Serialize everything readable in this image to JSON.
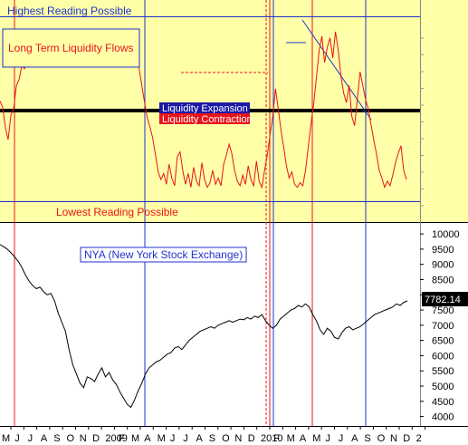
{
  "chart_data": [
    {
      "panel": "top",
      "type": "line",
      "annotations": {
        "highest": "Highest Reading Possible",
        "lowest": "Lowest Reading Possible",
        "title_box": "Long Term Liquidity Flows",
        "expansion": "Liquidity Expansion",
        "contraction": "Liquidity Contraction"
      },
      "y_ticks": [
        "",
        "",
        "",
        "",
        "",
        "",
        "",
        "",
        "",
        "",
        ""
      ],
      "series": [
        {
          "color": "#e8141b",
          "points": [
            [
              0,
              130
            ],
            [
              3,
              122
            ],
            [
              6,
              95
            ],
            [
              9,
              80
            ],
            [
              12,
              112
            ],
            [
              15,
              120
            ],
            [
              18,
              150
            ],
            [
              21,
              158
            ],
            [
              24,
              176
            ],
            [
              27,
              172
            ],
            [
              30,
              188
            ],
            [
              33,
              183
            ],
            [
              36,
              200
            ],
            [
              39,
              195
            ],
            [
              42,
              206
            ],
            [
              45,
              198
            ],
            [
              48,
              190
            ],
            [
              51,
              208
            ],
            [
              54,
              196
            ],
            [
              57,
              214
            ],
            [
              60,
              200
            ],
            [
              63,
              218
            ],
            [
              66,
              204
            ],
            [
              69,
              198
            ],
            [
              72,
              215
            ],
            [
              75,
              206
            ],
            [
              78,
              195
            ],
            [
              81,
              212
            ],
            [
              84,
              200
            ],
            [
              87,
              220
            ],
            [
              90,
              205
            ],
            [
              93,
              214
            ],
            [
              96,
              196
            ],
            [
              99,
              188
            ],
            [
              102,
              200
            ],
            [
              105,
              186
            ],
            [
              108,
              198
            ],
            [
              111,
              180
            ],
            [
              114,
              192
            ],
            [
              117,
              178
            ],
            [
              120,
              190
            ],
            [
              123,
              182
            ],
            [
              126,
              196
            ],
            [
              129,
              184
            ],
            [
              132,
              200
            ],
            [
              135,
              205
            ],
            [
              138,
              214
            ],
            [
              141,
              222
            ],
            [
              144,
              218
            ],
            [
              147,
              205
            ],
            [
              150,
              190
            ],
            [
              153,
              172
            ],
            [
              156,
              150
            ],
            [
              159,
              128
            ],
            [
              162,
              108
            ],
            [
              165,
              96
            ],
            [
              168,
              82
            ],
            [
              171,
              60
            ],
            [
              174,
              38
            ],
            [
              177,
              28
            ],
            [
              180,
              36
            ],
            [
              183,
              22
            ],
            [
              186,
              48
            ],
            [
              189,
              30
            ],
            [
              192,
              20
            ],
            [
              195,
              58
            ],
            [
              198,
              64
            ],
            [
              201,
              40
            ],
            [
              204,
              22
            ],
            [
              207,
              36
            ],
            [
              210,
              18
            ],
            [
              213,
              44
            ],
            [
              216,
              26
            ],
            [
              219,
              20
            ],
            [
              222,
              50
            ],
            [
              225,
              28
            ],
            [
              228,
              18
            ],
            [
              231,
              24
            ],
            [
              234,
              40
            ],
            [
              237,
              22
            ],
            [
              240,
              30
            ],
            [
              243,
              20
            ],
            [
              246,
              48
            ],
            [
              249,
              60
            ],
            [
              252,
              74
            ],
            [
              255,
              62
            ],
            [
              258,
              40
            ],
            [
              261,
              26
            ],
            [
              264,
              20
            ],
            [
              267,
              34
            ],
            [
              270,
              22
            ],
            [
              273,
              46
            ],
            [
              276,
              28
            ],
            [
              279,
              20
            ],
            [
              282,
              52
            ],
            [
              285,
              26
            ],
            [
              288,
              18
            ],
            [
              291,
              40
            ],
            [
              294,
              60
            ],
            [
              297,
              86
            ],
            [
              300,
              110
            ],
            [
              303,
              146
            ],
            [
              306,
              120
            ],
            [
              309,
              92
            ],
            [
              312,
              70
            ],
            [
              315,
              46
            ],
            [
              318,
              30
            ],
            [
              321,
              38
            ],
            [
              324,
              22
            ],
            [
              327,
              18
            ],
            [
              330,
              24
            ],
            [
              333,
              20
            ],
            [
              336,
              40
            ],
            [
              339,
              70
            ],
            [
              342,
              100
            ],
            [
              345,
              126
            ],
            [
              348,
              160
            ],
            [
              351,
              196
            ],
            [
              354,
              214
            ],
            [
              357,
              180
            ],
            [
              360,
              200
            ],
            [
              363,
              212
            ],
            [
              366,
              186
            ],
            [
              369,
              220
            ],
            [
              372,
              196
            ],
            [
              375,
              162
            ],
            [
              378,
              140
            ],
            [
              381,
              128
            ],
            [
              384,
              150
            ],
            [
              387,
              110
            ],
            [
              390,
              98
            ],
            [
              393,
              132
            ],
            [
              396,
              168
            ],
            [
              399,
              150
            ],
            [
              402,
              132
            ],
            [
              405,
              120
            ],
            [
              408,
              100
            ],
            [
              411,
              80
            ],
            [
              414,
              62
            ],
            [
              417,
              40
            ],
            [
              420,
              30
            ],
            [
              423,
              18
            ],
            [
              426,
              26
            ],
            [
              429,
              20
            ],
            [
              432,
              34
            ],
            [
              435,
              50
            ],
            [
              438,
              62
            ],
            [
              441,
              72
            ],
            [
              444,
              40
            ],
            [
              447,
              28
            ]
          ]
        }
      ]
    },
    {
      "panel": "bottom",
      "type": "line",
      "title": "NYA (New York Stock Exchange)",
      "ylim": [
        3750,
        10300
      ],
      "y_ticks": [
        10000,
        9500,
        9000,
        8500,
        8000,
        7500,
        7000,
        6500,
        6000,
        5500,
        5000,
        4500,
        4000
      ],
      "last_value_label": "7782.14",
      "x_ticks": [
        "M",
        "J",
        "J",
        "A",
        "S",
        "O",
        "N",
        "D",
        "2009",
        "F",
        "M",
        "A",
        "M",
        "J",
        "J",
        "A",
        "S",
        "O",
        "N",
        "D",
        "2010",
        "F",
        "M",
        "A",
        "M",
        "J",
        "J",
        "A",
        "S",
        "O",
        "N",
        "D",
        "2"
      ],
      "series": [
        {
          "color": "#000000",
          "points": [
            [
              0,
              9650
            ],
            [
              4,
              9580
            ],
            [
              8,
              9500
            ],
            [
              12,
              9380
            ],
            [
              16,
              9250
            ],
            [
              20,
              9100
            ],
            [
              24,
              8900
            ],
            [
              28,
              8650
            ],
            [
              32,
              8450
            ],
            [
              36,
              8300
            ],
            [
              40,
              8200
            ],
            [
              44,
              8250
            ],
            [
              48,
              8100
            ],
            [
              52,
              8000
            ],
            [
              56,
              8050
            ],
            [
              60,
              7800
            ],
            [
              64,
              7400
            ],
            [
              68,
              7100
            ],
            [
              72,
              6800
            ],
            [
              76,
              6200
            ],
            [
              80,
              5700
            ],
            [
              84,
              5400
            ],
            [
              88,
              5100
            ],
            [
              92,
              4950
            ],
            [
              96,
              5300
            ],
            [
              100,
              5250
            ],
            [
              104,
              5150
            ],
            [
              108,
              5400
            ],
            [
              112,
              5600
            ],
            [
              116,
              5300
            ],
            [
              120,
              5450
            ],
            [
              124,
              5200
            ],
            [
              128,
              5050
            ],
            [
              132,
              4800
            ],
            [
              136,
              4600
            ],
            [
              140,
              4400
            ],
            [
              144,
              4300
            ],
            [
              148,
              4550
            ],
            [
              152,
              4850
            ],
            [
              156,
              5100
            ],
            [
              160,
              5400
            ],
            [
              164,
              5600
            ],
            [
              168,
              5700
            ],
            [
              172,
              5800
            ],
            [
              176,
              5850
            ],
            [
              180,
              5950
            ],
            [
              184,
              6050
            ],
            [
              188,
              6100
            ],
            [
              192,
              6250
            ],
            [
              196,
              6300
            ],
            [
              200,
              6200
            ],
            [
              204,
              6350
            ],
            [
              208,
              6500
            ],
            [
              212,
              6600
            ],
            [
              216,
              6700
            ],
            [
              220,
              6800
            ],
            [
              224,
              6850
            ],
            [
              228,
              6900
            ],
            [
              232,
              6950
            ],
            [
              236,
              6900
            ],
            [
              240,
              7000
            ],
            [
              244,
              7050
            ],
            [
              248,
              7100
            ],
            [
              252,
              7150
            ],
            [
              256,
              7100
            ],
            [
              260,
              7150
            ],
            [
              264,
              7200
            ],
            [
              268,
              7180
            ],
            [
              272,
              7250
            ],
            [
              276,
              7200
            ],
            [
              280,
              7300
            ],
            [
              284,
              7250
            ],
            [
              288,
              7350
            ],
            [
              292,
              7150
            ],
            [
              296,
              7000
            ],
            [
              300,
              6900
            ],
            [
              304,
              7000
            ],
            [
              308,
              7200
            ],
            [
              312,
              7300
            ],
            [
              316,
              7400
            ],
            [
              320,
              7500
            ],
            [
              324,
              7550
            ],
            [
              328,
              7650
            ],
            [
              332,
              7600
            ],
            [
              336,
              7700
            ],
            [
              340,
              7600
            ],
            [
              344,
              7350
            ],
            [
              348,
              7150
            ],
            [
              352,
              6850
            ],
            [
              356,
              6700
            ],
            [
              360,
              6900
            ],
            [
              364,
              6800
            ],
            [
              368,
              6600
            ],
            [
              372,
              6550
            ],
            [
              376,
              6750
            ],
            [
              380,
              6900
            ],
            [
              384,
              6950
            ],
            [
              388,
              6850
            ],
            [
              392,
              6900
            ],
            [
              396,
              6950
            ],
            [
              400,
              7050
            ],
            [
              404,
              7150
            ],
            [
              408,
              7250
            ],
            [
              412,
              7350
            ],
            [
              416,
              7400
            ],
            [
              420,
              7450
            ],
            [
              424,
              7500
            ],
            [
              428,
              7550
            ],
            [
              432,
              7600
            ],
            [
              436,
              7700
            ],
            [
              440,
              7650
            ],
            [
              444,
              7750
            ],
            [
              448,
              7800
            ]
          ]
        }
      ]
    }
  ]
}
